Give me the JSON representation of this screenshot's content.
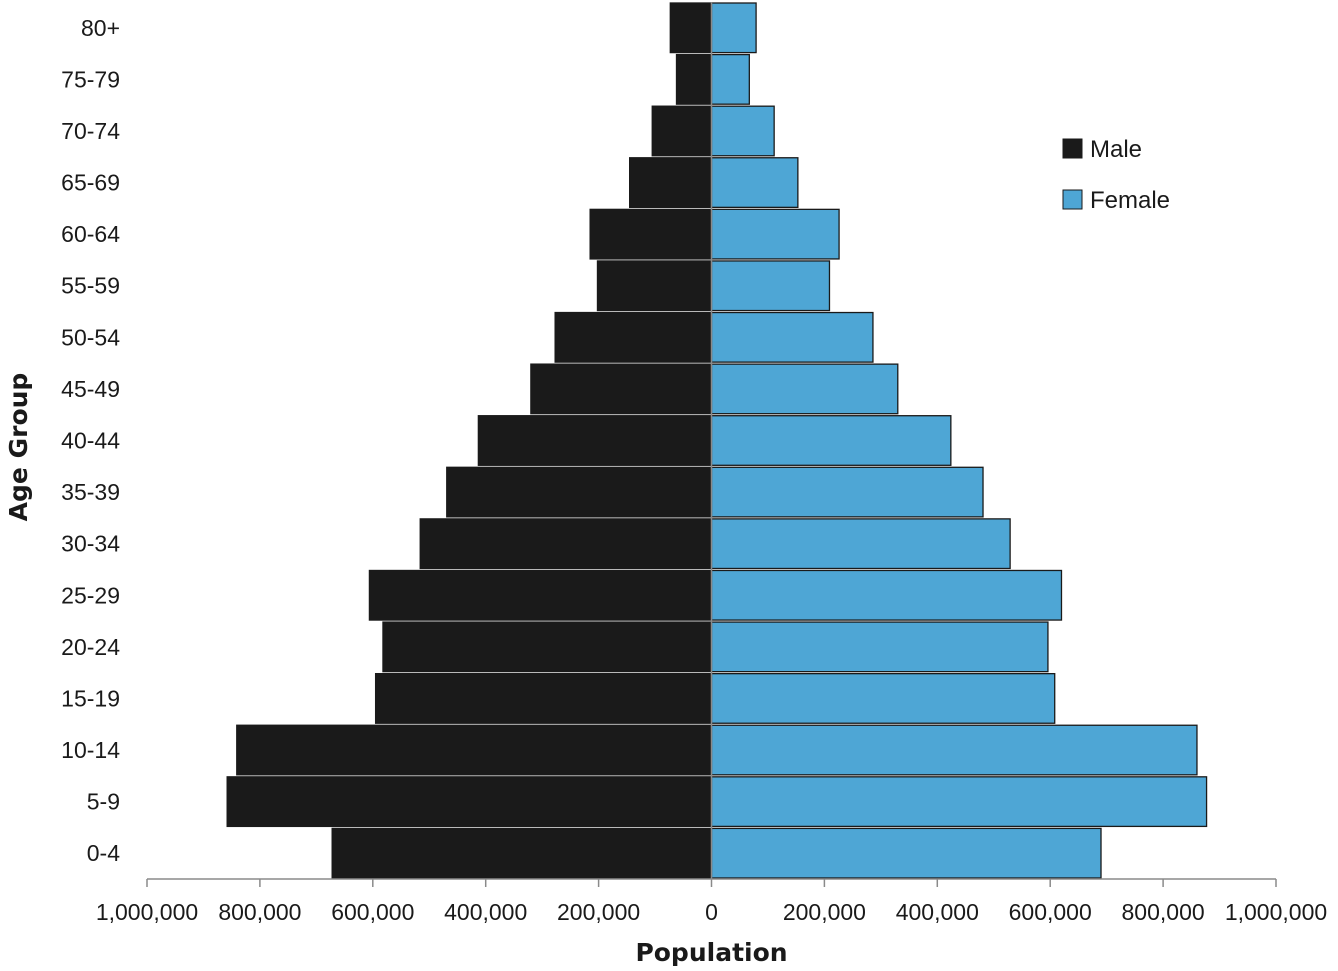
{
  "chart_data": {
    "type": "bar",
    "orientation": "horizontal",
    "layout": "population-pyramid",
    "categories": [
      "0-4",
      "5-9",
      "10-14",
      "15-19",
      "20-24",
      "25-29",
      "30-34",
      "35-39",
      "40-44",
      "45-49",
      "50-54",
      "55-59",
      "60-64",
      "65-69",
      "70-74",
      "75-79",
      "80+"
    ],
    "series": [
      {
        "name": "Male",
        "color": "#1a1a1a",
        "side": "left",
        "values": [
          672000,
          858000,
          841000,
          595000,
          582000,
          606000,
          516000,
          469000,
          413000,
          320000,
          277000,
          202000,
          215000,
          145000,
          105000,
          62000,
          73000
        ]
      },
      {
        "name": "Female",
        "color": "#4ea6d5",
        "side": "right",
        "values": [
          690000,
          877000,
          860000,
          608000,
          596000,
          620000,
          529000,
          481000,
          424000,
          330000,
          286000,
          209000,
          226000,
          153000,
          111000,
          67000,
          79000
        ]
      }
    ],
    "xlabel": "Population",
    "ylabel": "Age Group",
    "xlim": [
      -1000000,
      1000000
    ],
    "x_ticks": [
      -1000000,
      -800000,
      -600000,
      -400000,
      -200000,
      0,
      200000,
      400000,
      600000,
      800000,
      1000000
    ],
    "x_tick_labels": [
      "1,000,000",
      "800,000",
      "600,000",
      "400,000",
      "200,000",
      "0",
      "200,000",
      "400,000",
      "600,000",
      "800,000",
      "1,000,000"
    ],
    "grid": false,
    "legend_position": "top-right"
  }
}
